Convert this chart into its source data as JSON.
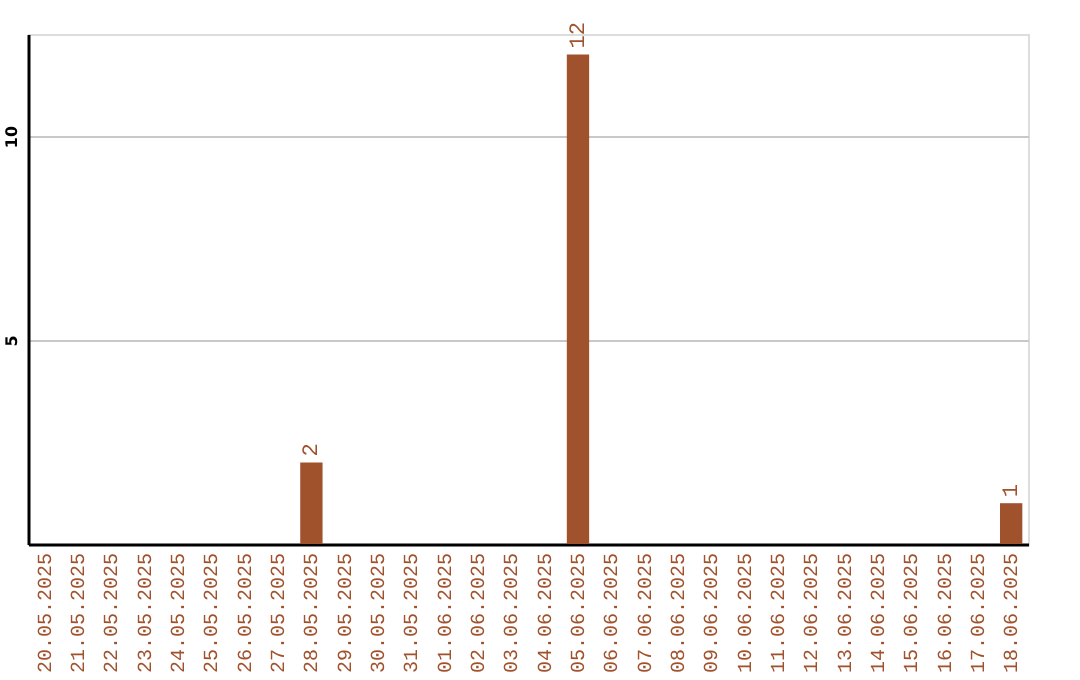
{
  "chart_data": {
    "type": "bar",
    "categories": [
      "20.05.2025",
      "21.05.2025",
      "22.05.2025",
      "23.05.2025",
      "24.05.2025",
      "25.05.2025",
      "26.05.2025",
      "27.05.2025",
      "28.05.2025",
      "29.05.2025",
      "30.05.2025",
      "31.05.2025",
      "01.06.2025",
      "02.06.2025",
      "03.06.2025",
      "04.06.2025",
      "05.06.2025",
      "06.06.2025",
      "07.06.2025",
      "08.06.2025",
      "09.06.2025",
      "10.06.2025",
      "11.06.2025",
      "12.06.2025",
      "13.06.2025",
      "14.06.2025",
      "15.06.2025",
      "16.06.2025",
      "17.06.2025",
      "18.06.2025"
    ],
    "values": [
      0,
      0,
      0,
      0,
      0,
      0,
      0,
      0,
      2,
      0,
      0,
      0,
      0,
      0,
      0,
      0,
      12,
      0,
      0,
      0,
      0,
      0,
      0,
      0,
      0,
      0,
      0,
      0,
      0,
      1
    ],
    "value_labels": [
      null,
      null,
      null,
      null,
      null,
      null,
      null,
      null,
      "2",
      null,
      null,
      null,
      null,
      null,
      null,
      null,
      "12",
      null,
      null,
      null,
      null,
      null,
      null,
      null,
      null,
      null,
      null,
      null,
      null,
      "1"
    ],
    "color": "#a0522d",
    "ylim": [
      0,
      12.5
    ],
    "yticks": [
      5,
      10
    ],
    "grid": "y"
  }
}
